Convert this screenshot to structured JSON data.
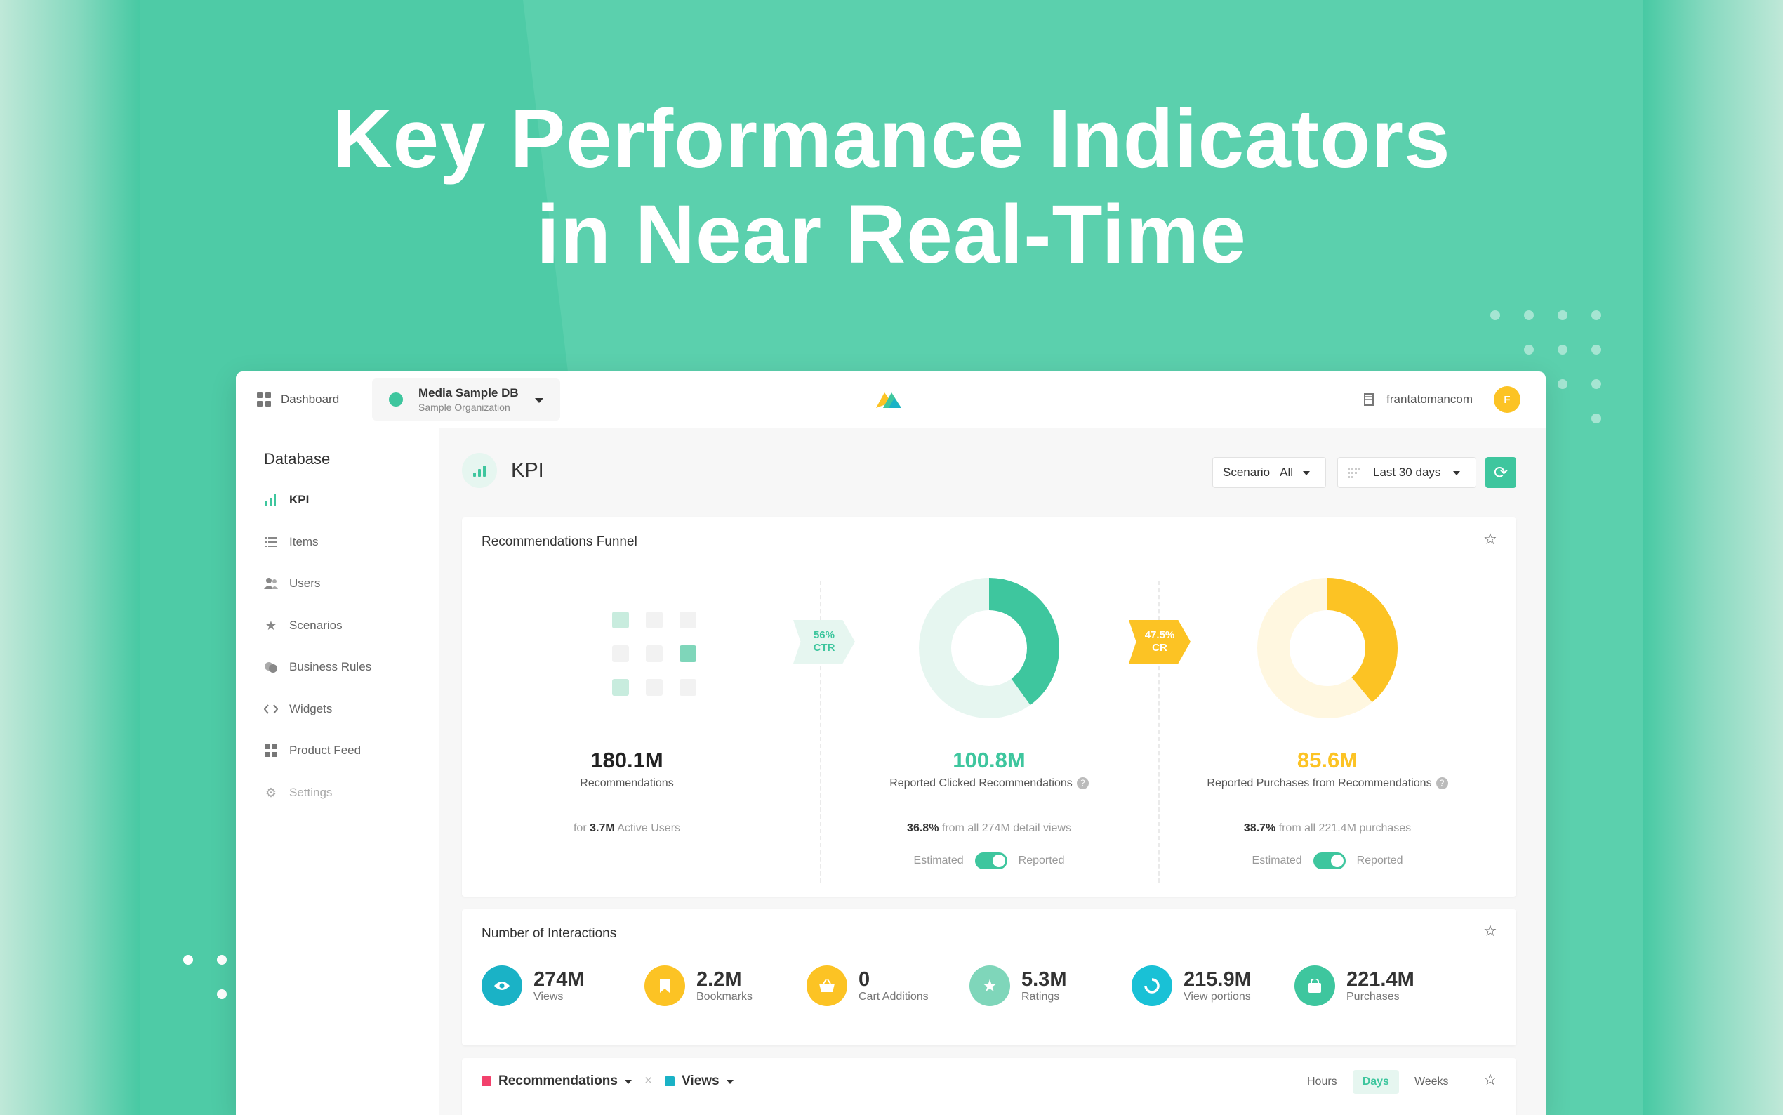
{
  "hero": {
    "line1": "Key Performance Indicators",
    "line2": "in Near Real-Time"
  },
  "topbar": {
    "dashboard_label": "Dashboard",
    "db_name": "Media Sample DB",
    "db_org": "Sample Organization",
    "user_name": "frantatomancom",
    "avatar_letter": "F"
  },
  "sidebar": {
    "title": "Database",
    "items": [
      {
        "label": "KPI",
        "icon": "bar-chart-icon"
      },
      {
        "label": "Items",
        "icon": "list-icon"
      },
      {
        "label": "Users",
        "icon": "users-icon"
      },
      {
        "label": "Scenarios",
        "icon": "star-icon"
      },
      {
        "label": "Business Rules",
        "icon": "rules-icon"
      },
      {
        "label": "Widgets",
        "icon": "code-icon"
      },
      {
        "label": "Product Feed",
        "icon": "grid-icon"
      },
      {
        "label": "Settings",
        "icon": "gear-icon"
      }
    ]
  },
  "main": {
    "page_title": "KPI",
    "scenario_label": "Scenario",
    "scenario_value": "All",
    "date_range": "Last 30 days"
  },
  "funnel": {
    "title": "Recommendations Funnel",
    "ctr_badge_value": "56%",
    "ctr_badge_label": "CTR",
    "cr_badge_value": "47.5%",
    "cr_badge_label": "CR",
    "col1": {
      "value": "180.1M",
      "label": "Recommendations",
      "sub_prefix": "for",
      "sub_value": "3.7M",
      "sub_suffix": "Active Users"
    },
    "col2": {
      "value": "100.8M",
      "label": "Reported Clicked Recommendations",
      "sub_value": "36.8%",
      "sub_suffix": "from all 274M detail views",
      "fraction": 0.4,
      "color": "#3ec69e",
      "track": "#e6f6f0"
    },
    "col3": {
      "value": "85.6M",
      "label": "Reported Purchases from Recommendations",
      "sub_value": "38.7%",
      "sub_suffix": "from all 221.4M purchases",
      "fraction": 0.39,
      "color": "#fcc324",
      "track": "#fff7e0"
    },
    "toggle_left": "Estimated",
    "toggle_right": "Reported",
    "help_glyph": "?"
  },
  "interactions": {
    "title": "Number of Interactions",
    "items": [
      {
        "value": "274M",
        "label": "Views",
        "color": "#1ab2c6",
        "icon": "eye-icon"
      },
      {
        "value": "2.2M",
        "label": "Bookmarks",
        "color": "#fcc324",
        "icon": "bookmark-icon"
      },
      {
        "value": "0",
        "label": "Cart Additions",
        "color": "#fcc324",
        "icon": "basket-icon"
      },
      {
        "value": "5.3M",
        "label": "Ratings",
        "color": "#7fd6ba",
        "icon": "star-icon"
      },
      {
        "value": "215.9M",
        "label": "View portions",
        "color": "#19c1d6",
        "icon": "portion-icon"
      },
      {
        "value": "221.4M",
        "label": "Purchases",
        "color": "#3ec69e",
        "icon": "bag-icon"
      }
    ]
  },
  "timeline": {
    "series1": "Recommendations",
    "series1_color": "#f2416c",
    "series2": "Views",
    "series2_color": "#1ab2c6",
    "remove_glyph": "×",
    "granularity": [
      "Hours",
      "Days",
      "Weeks"
    ],
    "selected": "Days"
  }
}
